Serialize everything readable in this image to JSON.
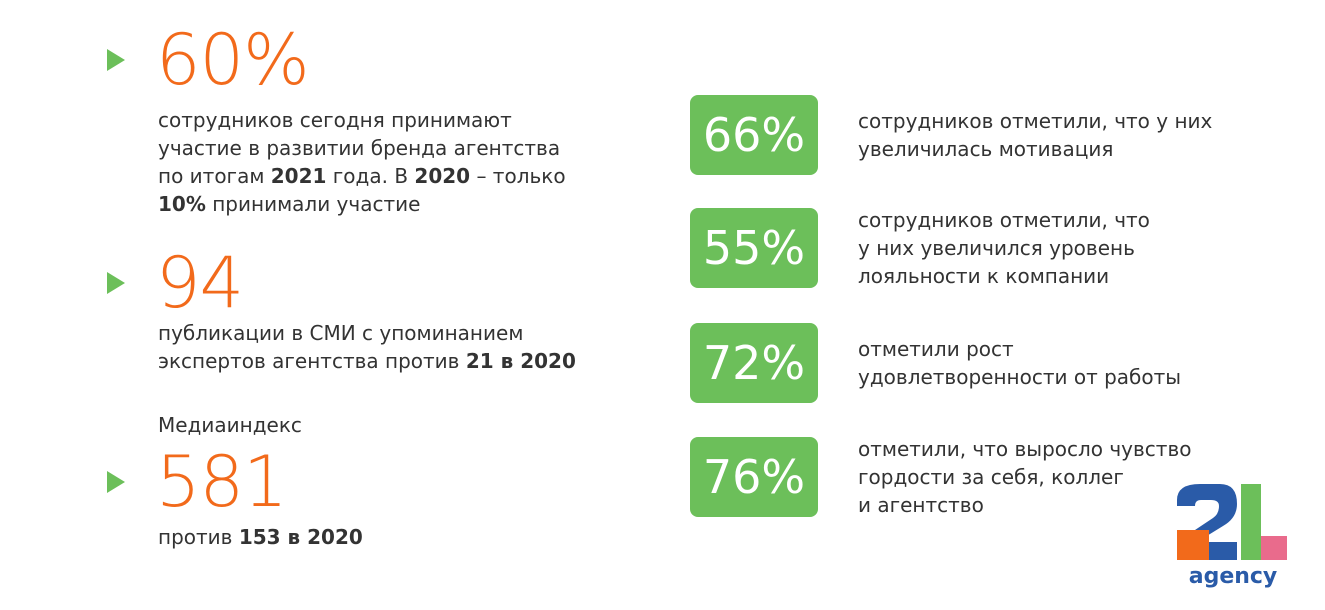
{
  "left_items": [
    {
      "number": "60%",
      "lines": [
        [
          {
            "text": "сотрудников сегодня принимают",
            "bold": false
          }
        ],
        [
          {
            "text": "участие в развитии бренда агентства",
            "bold": false
          }
        ],
        [
          {
            "text": "по итогам ",
            "bold": false
          },
          {
            "text": "2021",
            "bold": true
          },
          {
            "text": " года. В ",
            "bold": false
          },
          {
            "text": "2020",
            "bold": true
          },
          {
            "text": " – только",
            "bold": false
          }
        ],
        [
          {
            "text": "10%",
            "bold": true
          },
          {
            "text": " принимали участие",
            "bold": false
          }
        ]
      ]
    },
    {
      "number": "94",
      "lines": [
        [
          {
            "text": "публикации в СМИ с упоминанием",
            "bold": false
          }
        ],
        [
          {
            "text": "экспертов агентства против ",
            "bold": false
          },
          {
            "text": "21 в 2020",
            "bold": true
          }
        ]
      ]
    },
    {
      "label": "Медиаиндекс",
      "number": "581",
      "lines": [
        [
          {
            "text": "против ",
            "bold": false
          },
          {
            "text": "153 в 2020",
            "bold": true
          }
        ]
      ]
    }
  ],
  "right_items": [
    {
      "value": "66%",
      "lines": [
        "сотрудников отметили, что у них",
        "увеличилась мотивация"
      ]
    },
    {
      "value": "55%",
      "lines": [
        "сотрудников отметили, что",
        "у них увеличился уровень",
        "лояльности к компании"
      ]
    },
    {
      "value": "72%",
      "lines": [
        "отметили рост",
        "удовлетворенности от работы"
      ]
    },
    {
      "value": "76%",
      "lines": [
        "отметили, что выросло чувство",
        "гордости за себя, коллег",
        "и агентство"
      ]
    }
  ],
  "logo": {
    "text": "agency"
  }
}
